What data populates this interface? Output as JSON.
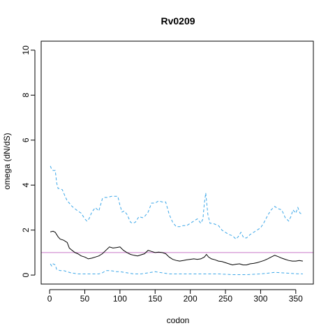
{
  "chart_data": {
    "type": "line",
    "title": "Rv0209",
    "xlabel": "codon",
    "ylabel": "omega (dN/dS)",
    "xlim": [
      -12,
      375
    ],
    "ylim": [
      -0.4,
      10.4
    ],
    "xticks": [
      0,
      50,
      100,
      150,
      200,
      250,
      300,
      350
    ],
    "yticks": [
      0,
      2,
      4,
      6,
      8,
      10
    ],
    "grid": false,
    "reference_line": {
      "y": 1,
      "color": "#c878c8"
    },
    "series": [
      {
        "style": "solid",
        "color": "#000000",
        "x": [
          1,
          5,
          8,
          12,
          15,
          20,
          25,
          28,
          32,
          36,
          40,
          45,
          50,
          55,
          60,
          65,
          70,
          75,
          80,
          85,
          90,
          95,
          100,
          105,
          110,
          115,
          120,
          125,
          130,
          135,
          140,
          145,
          150,
          155,
          160,
          165,
          170,
          175,
          180,
          185,
          190,
          195,
          200,
          205,
          210,
          215,
          220,
          223,
          226,
          230,
          235,
          240,
          245,
          250,
          255,
          260,
          265,
          270,
          275,
          280,
          285,
          290,
          295,
          300,
          305,
          310,
          315,
          320,
          325,
          330,
          335,
          340,
          345,
          350,
          355,
          360
        ],
        "y": [
          1.92,
          1.95,
          1.9,
          1.7,
          1.6,
          1.55,
          1.45,
          1.2,
          1.1,
          1.0,
          0.95,
          0.85,
          0.8,
          0.72,
          0.75,
          0.8,
          0.85,
          0.95,
          1.1,
          1.25,
          1.2,
          1.22,
          1.25,
          1.1,
          1.0,
          0.92,
          0.88,
          0.85,
          0.9,
          0.95,
          1.1,
          1.05,
          1.0,
          1.02,
          1.0,
          0.95,
          0.8,
          0.7,
          0.65,
          0.62,
          0.65,
          0.68,
          0.7,
          0.72,
          0.7,
          0.72,
          0.8,
          0.92,
          0.8,
          0.72,
          0.68,
          0.62,
          0.6,
          0.55,
          0.5,
          0.45,
          0.48,
          0.5,
          0.45,
          0.45,
          0.5,
          0.52,
          0.55,
          0.6,
          0.65,
          0.72,
          0.8,
          0.88,
          0.82,
          0.75,
          0.7,
          0.65,
          0.62,
          0.62,
          0.65,
          0.62
        ]
      },
      {
        "style": "dashed",
        "color": "#3aa6e8",
        "x": [
          1,
          3,
          5,
          8,
          10,
          12,
          14,
          18,
          22,
          25,
          28,
          32,
          36,
          40,
          45,
          50,
          53,
          56,
          60,
          65,
          70,
          75,
          78,
          82,
          88,
          92,
          97,
          100,
          103,
          106,
          110,
          115,
          118,
          122,
          127,
          132,
          135,
          140,
          145,
          150,
          155,
          160,
          165,
          170,
          175,
          180,
          185,
          190,
          195,
          200,
          205,
          210,
          215,
          218,
          220,
          222,
          225,
          228,
          232,
          236,
          240,
          245,
          250,
          255,
          260,
          265,
          268,
          272,
          276,
          280,
          285,
          290,
          295,
          300,
          305,
          310,
          315,
          320,
          325,
          330,
          335,
          340,
          343,
          346,
          350,
          353,
          356,
          360
        ],
        "y": [
          4.85,
          4.7,
          4.65,
          4.65,
          4.1,
          3.85,
          3.85,
          3.8,
          3.5,
          3.3,
          3.2,
          3.05,
          2.95,
          2.85,
          2.75,
          2.5,
          2.4,
          2.5,
          2.8,
          3.0,
          2.85,
          3.4,
          3.45,
          3.45,
          3.5,
          3.5,
          3.5,
          3.1,
          2.8,
          2.85,
          2.7,
          2.35,
          2.3,
          2.35,
          2.6,
          2.55,
          2.6,
          2.8,
          3.2,
          3.2,
          3.3,
          3.25,
          3.25,
          2.7,
          2.35,
          2.15,
          2.15,
          2.2,
          2.2,
          2.3,
          2.4,
          2.5,
          2.3,
          2.5,
          3.2,
          3.65,
          2.7,
          2.3,
          2.3,
          2.25,
          2.2,
          2.0,
          1.9,
          1.8,
          1.75,
          1.6,
          1.7,
          1.9,
          1.65,
          1.65,
          1.8,
          1.9,
          2.0,
          2.1,
          2.35,
          2.65,
          2.9,
          3.05,
          2.95,
          2.9,
          2.55,
          2.4,
          2.6,
          2.9,
          2.75,
          3.0,
          2.75,
          2.7
        ]
      },
      {
        "style": "dashed",
        "color": "#3aa6e8",
        "x": [
          1,
          3,
          5,
          8,
          10,
          15,
          20,
          25,
          30,
          40,
          50,
          60,
          70,
          75,
          80,
          85,
          90,
          95,
          100,
          110,
          120,
          130,
          140,
          150,
          160,
          170,
          180,
          200,
          220,
          240,
          260,
          280,
          300,
          310,
          320,
          330,
          340,
          350,
          360
        ],
        "y": [
          0.5,
          0.4,
          0.5,
          0.45,
          0.25,
          0.2,
          0.2,
          0.15,
          0.1,
          0.05,
          0.05,
          0.05,
          0.05,
          0.1,
          0.2,
          0.2,
          0.18,
          0.15,
          0.15,
          0.1,
          0.05,
          0.05,
          0.1,
          0.15,
          0.1,
          0.05,
          0.05,
          0.05,
          0.05,
          0.05,
          0.02,
          0.02,
          0.05,
          0.08,
          0.12,
          0.1,
          0.08,
          0.06,
          0.05
        ]
      }
    ]
  }
}
